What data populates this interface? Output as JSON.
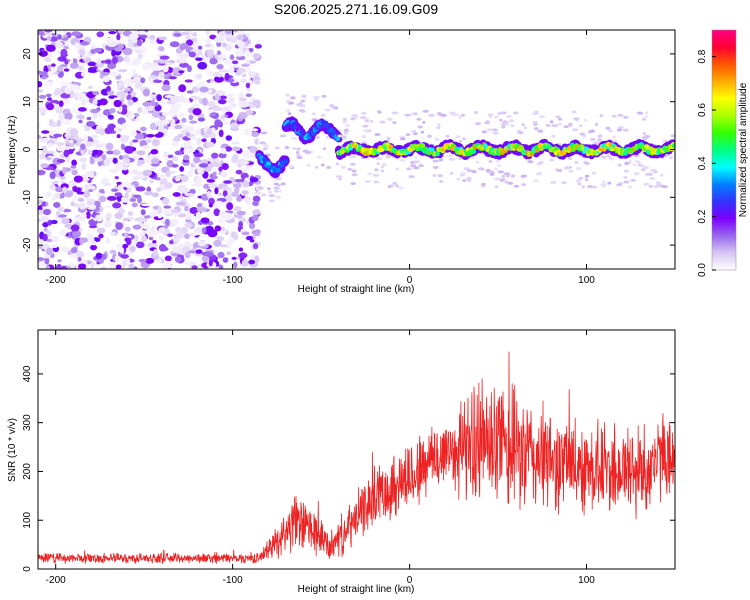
{
  "title": "S206.2025.271.16.09.G09",
  "chart_data": [
    {
      "type": "heatmap",
      "name": "spectrogram",
      "xlabel": "Height of straight line (km)",
      "ylabel": "Frequency (Hz)",
      "xlim": [
        -210,
        150
      ],
      "ylim": [
        -25,
        25
      ],
      "xticks": [
        -200,
        -100,
        0,
        100
      ],
      "yticks": [
        -20,
        -10,
        0,
        10,
        20
      ],
      "colorbar": {
        "label": "Normalized spectral amplitude",
        "range": [
          0.0,
          0.9
        ],
        "ticks": [
          "0.0",
          "0.2",
          "0.4",
          "0.6",
          "0.8"
        ],
        "colors": [
          "#ffffff",
          "#d7c5f4",
          "#9966ee",
          "#7b00ff",
          "#3333ff",
          "#0080ff",
          "#00ffff",
          "#00ff80",
          "#33ff00",
          "#aaff00",
          "#ffff00",
          "#ffaa00",
          "#ff5500",
          "#ff0033",
          "#ff0088"
        ]
      },
      "regions": [
        {
          "x_range": [
            -210,
            -85
          ],
          "description": "noise",
          "amplitude": [
            0.0,
            0.2
          ]
        },
        {
          "x_range": [
            -85,
            -70
          ],
          "signal_freq": -3,
          "amplitude": 0.35
        },
        {
          "x_range": [
            -70,
            -40
          ],
          "signal_freq": 4,
          "amplitude": 0.35
        },
        {
          "x_range": [
            -40,
            150
          ],
          "signal_freq": 0,
          "amplitude": 0.7
        }
      ]
    },
    {
      "type": "line",
      "name": "snr",
      "xlabel": "Height of straight line (km)",
      "ylabel": "SNR (10 * v/v)",
      "xlim": [
        -210,
        150
      ],
      "ylim": [
        0,
        490
      ],
      "xticks": [
        -200,
        -100,
        0,
        100
      ],
      "yticks": [
        0,
        100,
        200,
        300,
        400
      ],
      "color": "#ee2222",
      "envelope": [
        {
          "x": -210,
          "mean": 22,
          "amp": 12
        },
        {
          "x": -85,
          "mean": 22,
          "amp": 12
        },
        {
          "x": -80,
          "mean": 40,
          "amp": 25
        },
        {
          "x": -65,
          "mean": 95,
          "amp": 70
        },
        {
          "x": -55,
          "mean": 80,
          "amp": 60
        },
        {
          "x": -45,
          "mean": 45,
          "amp": 35
        },
        {
          "x": -35,
          "mean": 80,
          "amp": 55
        },
        {
          "x": -20,
          "mean": 150,
          "amp": 70
        },
        {
          "x": 0,
          "mean": 190,
          "amp": 90
        },
        {
          "x": 20,
          "mean": 240,
          "amp": 90
        },
        {
          "x": 40,
          "mean": 260,
          "amp": 150
        },
        {
          "x": 60,
          "mean": 240,
          "amp": 150
        },
        {
          "x": 80,
          "mean": 220,
          "amp": 120
        },
        {
          "x": 100,
          "mean": 210,
          "amp": 110
        },
        {
          "x": 130,
          "mean": 200,
          "amp": 120
        },
        {
          "x": 150,
          "mean": 240,
          "amp": 80
        }
      ]
    }
  ]
}
